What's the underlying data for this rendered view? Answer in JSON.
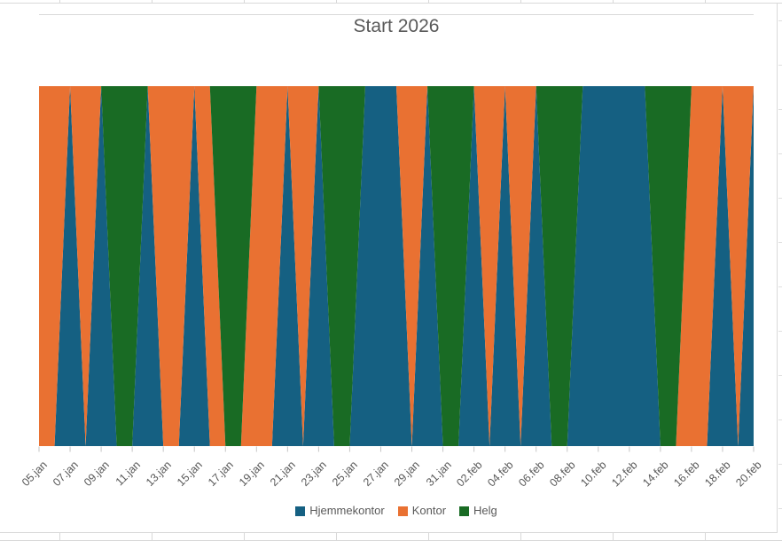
{
  "chart": {
    "background": "#ffffff",
    "border_color": "#d9d9d9",
    "gridline_color": "#d9d9d9",
    "tick_color": "#c6c6c6",
    "text_color": "#595959"
  },
  "chart_data": {
    "type": "area",
    "stacked": true,
    "title": "Start 2026",
    "xlabel": "",
    "ylabel": "",
    "ylim": [
      0,
      1.2
    ],
    "y_axis_visible": false,
    "grid": "top major gridline visible only",
    "legend_position": "bottom",
    "x_label_rotation_deg": 45,
    "x_tick_interval": 2,
    "categories": [
      "05.jan",
      "06.jan",
      "07.jan",
      "08.jan",
      "09.jan",
      "10.jan",
      "11.jan",
      "12.jan",
      "13.jan",
      "14.jan",
      "15.jan",
      "16.jan",
      "17.jan",
      "18.jan",
      "19.jan",
      "20.jan",
      "21.jan",
      "22.jan",
      "23.jan",
      "24.jan",
      "25.jan",
      "26.jan",
      "27.jan",
      "28.jan",
      "29.jan",
      "30.jan",
      "31.jan",
      "01.feb",
      "02.feb",
      "03.feb",
      "04.feb",
      "05.feb",
      "06.feb",
      "07.feb",
      "08.feb",
      "09.feb",
      "10.feb",
      "11.feb",
      "12.feb",
      "13.feb",
      "14.feb",
      "15.feb",
      "16.feb",
      "17.feb",
      "18.feb",
      "19.feb",
      "20.feb"
    ],
    "x_tick_labels": [
      "05.jan",
      "07.jan",
      "09.jan",
      "11.jan",
      "13.jan",
      "15.jan",
      "17.jan",
      "19.jan",
      "21.jan",
      "23.jan",
      "25.jan",
      "27.jan",
      "29.jan",
      "31.jan",
      "02.feb",
      "04.feb",
      "06.feb",
      "08.feb",
      "10.feb",
      "12.feb",
      "14.feb",
      "16.feb",
      "18.feb",
      "20.feb"
    ],
    "series": [
      {
        "name": "Hjemmekontor",
        "color": "#156082",
        "values": [
          0,
          0,
          1,
          0,
          1,
          0,
          0,
          1,
          0,
          0,
          1,
          0,
          0,
          0,
          0,
          0,
          1,
          0,
          1,
          0,
          0,
          1,
          1,
          1,
          0,
          1,
          0,
          0,
          1,
          0,
          1,
          0,
          1,
          0,
          0,
          1,
          1,
          1,
          1,
          1,
          0,
          0,
          0,
          0,
          1,
          0,
          1
        ]
      },
      {
        "name": "Kontor",
        "color": "#E97132",
        "values": [
          1,
          1,
          0,
          1,
          0,
          0,
          0,
          0,
          1,
          1,
          0,
          1,
          0,
          0,
          1,
          1,
          0,
          1,
          0,
          0,
          0,
          0,
          0,
          0,
          1,
          0,
          0,
          0,
          0,
          1,
          0,
          1,
          0,
          0,
          0,
          0,
          0,
          0,
          0,
          0,
          0,
          0,
          1,
          1,
          0,
          1,
          0
        ]
      },
      {
        "name": "Helg",
        "color": "#196B24",
        "values": [
          0,
          0,
          0,
          0,
          0,
          1,
          1,
          0,
          0,
          0,
          0,
          0,
          1,
          1,
          0,
          0,
          0,
          0,
          0,
          1,
          1,
          0,
          0,
          0,
          0,
          0,
          1,
          1,
          0,
          0,
          0,
          0,
          0,
          1,
          1,
          0,
          0,
          0,
          0,
          0,
          1,
          1,
          0,
          0,
          0,
          0,
          0
        ]
      }
    ],
    "legend": [
      "Hjemmekontor",
      "Kontor",
      "Helg"
    ]
  }
}
